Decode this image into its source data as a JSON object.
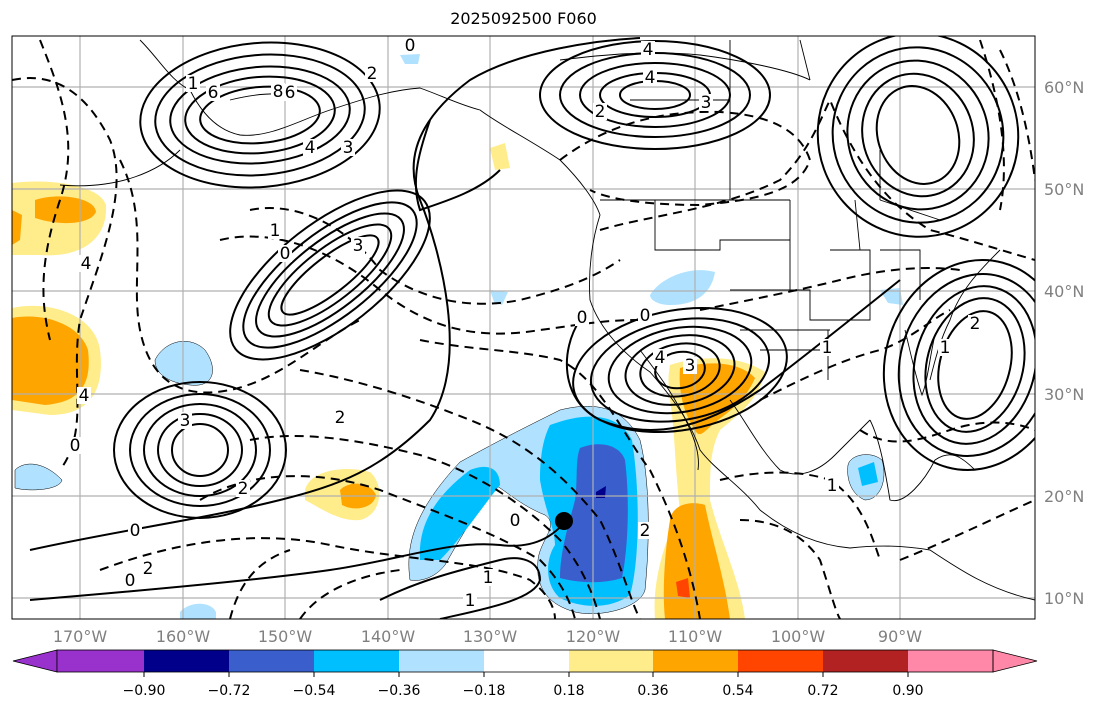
{
  "title": "2025092500 F060",
  "lon_labels": [
    "170°W",
    "160°W",
    "150°W",
    "140°W",
    "130°W",
    "120°W",
    "110°W",
    "100°W",
    "90°W"
  ],
  "lat_labels": [
    "60°N",
    "50°N",
    "40°N",
    "30°N",
    "20°N",
    "10°N"
  ],
  "colorbar": {
    "colors": [
      "#9932CC",
      "#00008B",
      "#3A5FCD",
      "#00BFFF",
      "#B0E2FF",
      "#FFFFFF",
      "#FFEC8B",
      "#FFA500",
      "#FF4500",
      "#B22222",
      "#FF88A8"
    ],
    "ticks": [
      "−0.90",
      "−0.72",
      "−0.54",
      "−0.36",
      "−0.18",
      "0.18",
      "0.36",
      "0.54",
      "0.72",
      "0.90"
    ]
  },
  "contour_labels": [
    "0",
    "6",
    "8",
    "4",
    "3",
    "2",
    "6",
    "4",
    "3",
    "4",
    "2",
    "1",
    "0",
    "3",
    "1",
    "2",
    "4",
    "0",
    "2",
    "4",
    "2",
    "0",
    "3",
    "0",
    "0",
    "1",
    "1",
    "2",
    "3",
    "0",
    "0",
    "1",
    "2",
    "4",
    "1",
    "1"
  ],
  "marker": "storm-center"
}
